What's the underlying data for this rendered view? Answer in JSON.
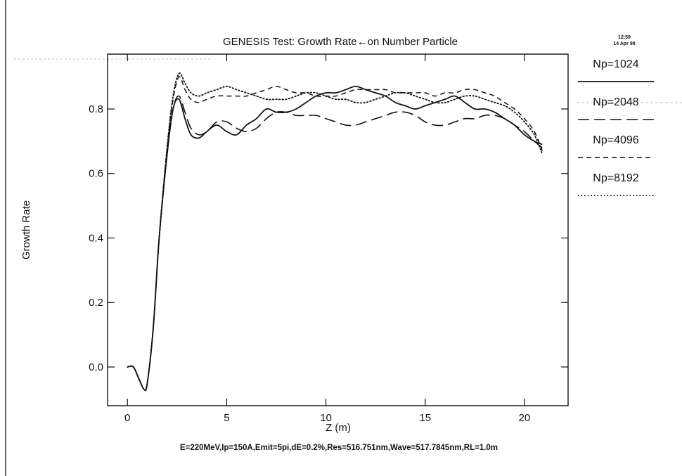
{
  "chart_data": {
    "type": "line",
    "title": "GENESIS Test: Growth Rate←on Number Particle",
    "timestamp": [
      "12:59",
      "14 Apr 98"
    ],
    "xlabel": "Z (m)",
    "ylabel": "Growth Rate",
    "footer": "E=220MeV,Ip=150A,Emit=5pi,dE=0.2%,Res=516.751nm,Wave=517.7845nm,RL=1.0m",
    "xlim": [
      -1,
      22.2
    ],
    "ylim": [
      -0.12,
      0.97
    ],
    "x_ticks": [
      0,
      5,
      10,
      15,
      20
    ],
    "y_ticks": [
      0.0,
      0.2,
      0.4,
      0.6,
      0.8
    ],
    "y_tick_labels": [
      "0.0",
      "0.2",
      "0.4",
      "0.6",
      "0.8"
    ],
    "x_tick_labels": [
      "0",
      "5",
      "10",
      "15",
      "20"
    ],
    "grid": false,
    "legend_position": "right, outside plot",
    "series": [
      {
        "name": "Np=1024",
        "style": "solid",
        "x": [
          0,
          0.3,
          0.6,
          0.85,
          1.0,
          1.3,
          1.6,
          2.0,
          2.3,
          2.6,
          2.9,
          3.2,
          3.6,
          4.0,
          4.5,
          5.0,
          5.5,
          6.0,
          6.5,
          7.0,
          7.5,
          8.0,
          8.5,
          9.0,
          9.5,
          10.0,
          10.5,
          11.0,
          11.5,
          12.0,
          12.5,
          13.0,
          13.5,
          14.0,
          14.5,
          15.0,
          15.5,
          16.0,
          16.5,
          17.0,
          17.5,
          18.0,
          18.5,
          19.0,
          19.5,
          20.0,
          20.5,
          20.9
        ],
        "values": [
          0.0,
          0.0,
          -0.04,
          -0.07,
          -0.05,
          0.12,
          0.4,
          0.66,
          0.8,
          0.83,
          0.77,
          0.72,
          0.71,
          0.73,
          0.75,
          0.73,
          0.72,
          0.75,
          0.77,
          0.8,
          0.79,
          0.79,
          0.8,
          0.82,
          0.84,
          0.85,
          0.85,
          0.86,
          0.87,
          0.86,
          0.85,
          0.84,
          0.82,
          0.81,
          0.8,
          0.81,
          0.82,
          0.83,
          0.84,
          0.82,
          0.8,
          0.8,
          0.79,
          0.77,
          0.75,
          0.72,
          0.7,
          0.69
        ]
      },
      {
        "name": "Np=2048",
        "style": "long-dash",
        "x": [
          0,
          0.3,
          0.6,
          0.85,
          1.0,
          1.3,
          1.6,
          2.0,
          2.3,
          2.6,
          2.9,
          3.2,
          3.6,
          4.0,
          4.5,
          5.0,
          5.5,
          6.0,
          6.5,
          7.0,
          7.5,
          8.0,
          8.5,
          9.0,
          9.5,
          10.0,
          10.5,
          11.0,
          11.5,
          12.0,
          12.5,
          13.0,
          13.5,
          14.0,
          14.5,
          15.0,
          15.5,
          16.0,
          16.5,
          17.0,
          17.5,
          18.0,
          18.5,
          19.0,
          19.5,
          20.0,
          20.5,
          20.9
        ],
        "values": [
          0.0,
          0.0,
          -0.04,
          -0.07,
          -0.05,
          0.12,
          0.4,
          0.66,
          0.8,
          0.84,
          0.79,
          0.74,
          0.72,
          0.73,
          0.76,
          0.76,
          0.74,
          0.73,
          0.74,
          0.77,
          0.79,
          0.79,
          0.78,
          0.78,
          0.78,
          0.77,
          0.76,
          0.75,
          0.75,
          0.76,
          0.77,
          0.78,
          0.79,
          0.79,
          0.78,
          0.76,
          0.75,
          0.75,
          0.76,
          0.77,
          0.77,
          0.78,
          0.78,
          0.77,
          0.75,
          0.73,
          0.7,
          0.68
        ]
      },
      {
        "name": "Np=4096",
        "style": "short-dash",
        "x": [
          0,
          0.3,
          0.6,
          0.85,
          1.0,
          1.3,
          1.6,
          2.0,
          2.3,
          2.6,
          2.9,
          3.2,
          3.6,
          4.0,
          4.5,
          5.0,
          5.5,
          6.0,
          6.5,
          7.0,
          7.5,
          8.0,
          8.5,
          9.0,
          9.5,
          10.0,
          10.5,
          11.0,
          11.5,
          12.0,
          12.5,
          13.0,
          13.5,
          14.0,
          14.5,
          15.0,
          15.5,
          16.0,
          16.5,
          17.0,
          17.5,
          18.0,
          18.5,
          19.0,
          19.5,
          20.0,
          20.5,
          20.9
        ],
        "values": [
          0.0,
          0.0,
          -0.04,
          -0.07,
          -0.05,
          0.12,
          0.4,
          0.68,
          0.83,
          0.9,
          0.86,
          0.83,
          0.82,
          0.83,
          0.84,
          0.84,
          0.84,
          0.84,
          0.85,
          0.86,
          0.87,
          0.86,
          0.85,
          0.85,
          0.84,
          0.84,
          0.84,
          0.85,
          0.86,
          0.86,
          0.86,
          0.86,
          0.85,
          0.85,
          0.85,
          0.85,
          0.84,
          0.85,
          0.85,
          0.86,
          0.86,
          0.85,
          0.84,
          0.82,
          0.8,
          0.77,
          0.73,
          0.67
        ]
      },
      {
        "name": "Np=8192",
        "style": "dotted",
        "x": [
          0,
          0.3,
          0.6,
          0.85,
          1.0,
          1.3,
          1.6,
          2.0,
          2.3,
          2.6,
          2.9,
          3.2,
          3.6,
          4.0,
          4.5,
          5.0,
          5.5,
          6.0,
          6.5,
          7.0,
          7.5,
          8.0,
          8.5,
          9.0,
          9.5,
          10.0,
          10.5,
          11.0,
          11.5,
          12.0,
          12.5,
          13.0,
          13.5,
          14.0,
          14.5,
          15.0,
          15.5,
          16.0,
          16.5,
          17.0,
          17.5,
          18.0,
          18.5,
          19.0,
          19.5,
          20.0,
          20.5,
          20.9
        ],
        "values": [
          0.0,
          0.0,
          -0.04,
          -0.07,
          -0.05,
          0.12,
          0.4,
          0.68,
          0.84,
          0.91,
          0.88,
          0.85,
          0.84,
          0.85,
          0.86,
          0.87,
          0.86,
          0.85,
          0.84,
          0.83,
          0.83,
          0.83,
          0.84,
          0.85,
          0.85,
          0.84,
          0.83,
          0.83,
          0.82,
          0.82,
          0.83,
          0.84,
          0.85,
          0.85,
          0.84,
          0.83,
          0.82,
          0.82,
          0.83,
          0.84,
          0.84,
          0.83,
          0.82,
          0.81,
          0.79,
          0.76,
          0.72,
          0.66
        ]
      }
    ]
  }
}
